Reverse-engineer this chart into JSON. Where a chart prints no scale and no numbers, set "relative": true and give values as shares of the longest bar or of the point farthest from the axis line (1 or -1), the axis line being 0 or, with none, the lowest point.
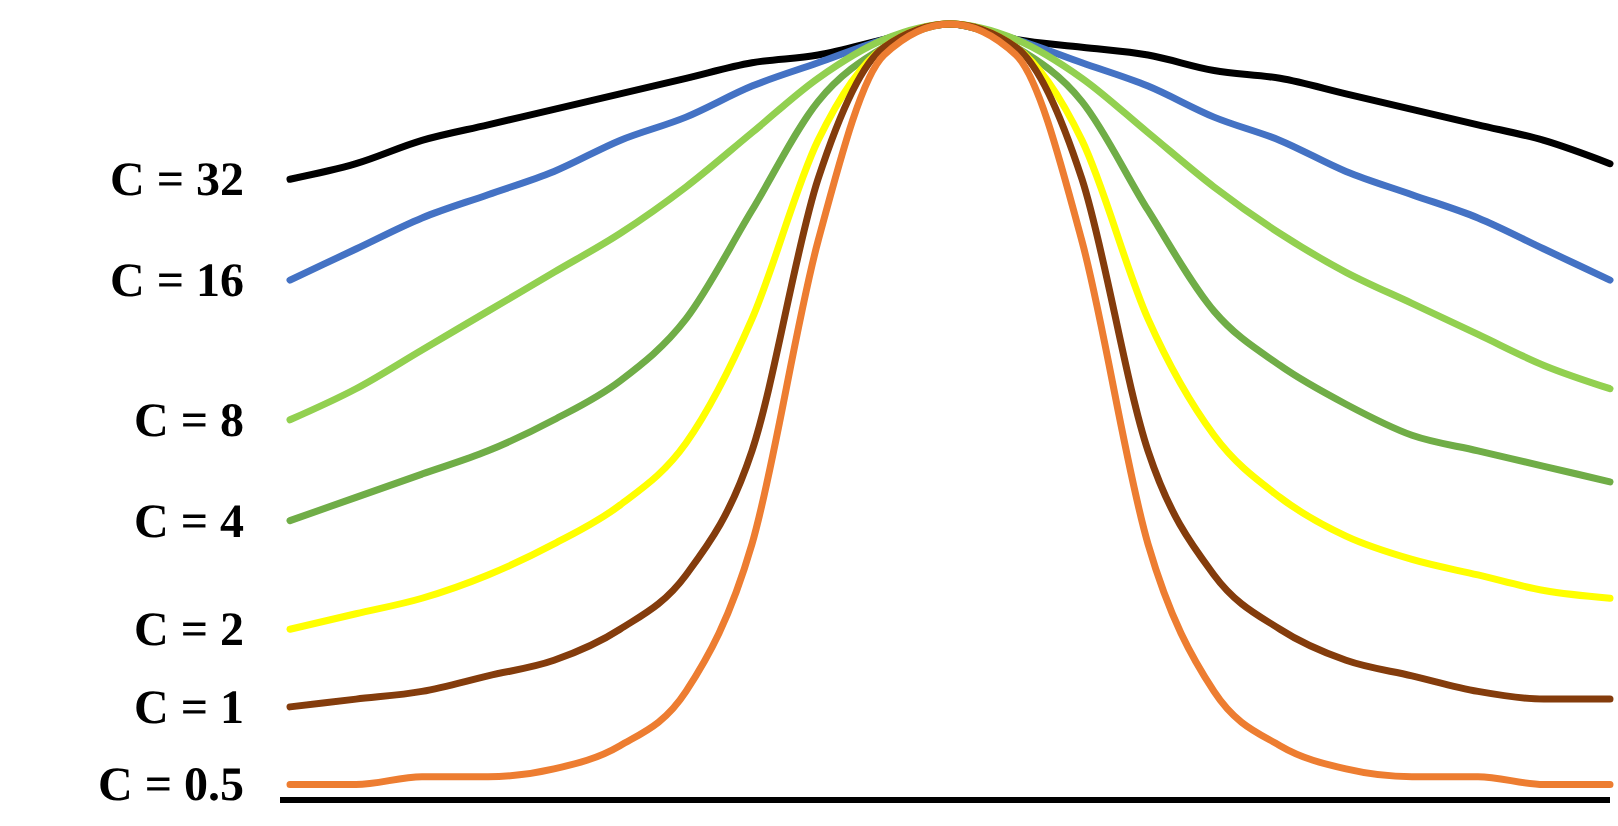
{
  "chart_data": {
    "type": "line",
    "relative": true,
    "categories": [
      null,
      null,
      null,
      null,
      null,
      null,
      null,
      null,
      null,
      null,
      null,
      null,
      null,
      null,
      null,
      null,
      null,
      null,
      null,
      null,
      null
    ],
    "marker": "none",
    "line_style": "solid",
    "series": [
      {
        "name": "C = 32",
        "color": "#000000",
        "values": [
          0.8,
          0.82,
          0.85,
          0.87,
          0.89,
          0.91,
          0.93,
          0.95,
          0.96,
          0.98,
          1.0,
          0.98,
          0.97,
          0.96,
          0.94,
          0.93,
          0.91,
          0.89,
          0.87,
          0.85,
          0.82
        ]
      },
      {
        "name": "C = 16",
        "color": "#4472c4",
        "values": [
          0.67,
          0.71,
          0.75,
          0.78,
          0.81,
          0.85,
          0.88,
          0.92,
          0.95,
          0.98,
          1.0,
          0.98,
          0.95,
          0.92,
          0.88,
          0.85,
          0.81,
          0.78,
          0.75,
          0.71,
          0.67
        ]
      },
      {
        "name": "C = 8",
        "color": "#92d050",
        "values": [
          0.49,
          0.53,
          0.58,
          0.63,
          0.68,
          0.73,
          0.79,
          0.86,
          0.93,
          0.98,
          1.0,
          0.98,
          0.93,
          0.86,
          0.79,
          0.73,
          0.68,
          0.64,
          0.6,
          0.56,
          0.53
        ]
      },
      {
        "name": "C = 4",
        "color": "#70ad47",
        "values": [
          0.36,
          0.39,
          0.42,
          0.45,
          0.49,
          0.54,
          0.62,
          0.76,
          0.9,
          0.97,
          1.0,
          0.97,
          0.9,
          0.76,
          0.63,
          0.56,
          0.51,
          0.47,
          0.45,
          0.43,
          0.41
        ]
      },
      {
        "name": "C = 2",
        "color": "#ffff00",
        "values": [
          0.22,
          0.24,
          0.26,
          0.29,
          0.33,
          0.38,
          0.46,
          0.62,
          0.85,
          0.97,
          1.0,
          0.97,
          0.85,
          0.62,
          0.47,
          0.39,
          0.34,
          0.31,
          0.29,
          0.27,
          0.26
        ]
      },
      {
        "name": "C = 1",
        "color": "#843c0c",
        "values": [
          0.12,
          0.13,
          0.14,
          0.16,
          0.18,
          0.22,
          0.29,
          0.45,
          0.8,
          0.97,
          1.0,
          0.97,
          0.8,
          0.45,
          0.29,
          0.22,
          0.18,
          0.16,
          0.14,
          0.13,
          0.13
        ]
      },
      {
        "name": "C = 0.5",
        "color": "#ed7d31",
        "values": [
          0.02,
          0.02,
          0.03,
          0.03,
          0.04,
          0.07,
          0.14,
          0.33,
          0.72,
          0.96,
          1.0,
          0.96,
          0.72,
          0.33,
          0.14,
          0.07,
          0.04,
          0.03,
          0.03,
          0.02,
          0.02
        ]
      }
    ]
  }
}
